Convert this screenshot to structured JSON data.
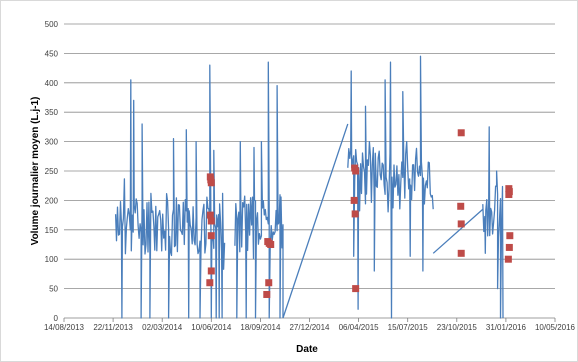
{
  "chart_data": {
    "type": "line",
    "title": "",
    "xlabel": "Date",
    "ylabel": "Volume journalier moyen (L.j-1)",
    "ylim": [
      0,
      500
    ],
    "yticks": [
      0,
      50,
      100,
      150,
      200,
      250,
      300,
      350,
      400,
      450,
      500
    ],
    "xlim": [
      "2013-08-14",
      "2016-05-10"
    ],
    "xtick_labels": [
      "14/08/2013",
      "22/11/2013",
      "02/03/2014",
      "10/06/2014",
      "18/09/2014",
      "27/12/2014",
      "06/04/2015",
      "15/07/2015",
      "23/10/2015",
      "31/01/2016",
      "10/05/2016"
    ],
    "grid": "horizontal",
    "legend": "none",
    "colors": {
      "line": "#4a7ebb",
      "markers": "#be4b48",
      "grid": "#8c8c8c"
    },
    "series": [
      {
        "type": "line",
        "segments": [
          {
            "start": "2013-11-27",
            "end": "2014-07-08",
            "seed": 11,
            "base": 160,
            "spread": 55,
            "spikes": [
              {
                "date": "2013-12-28",
                "value": 405
              },
              {
                "date": "2014-01-03",
                "value": 370
              },
              {
                "date": "2014-01-20",
                "value": 330
              },
              {
                "date": "2014-03-25",
                "value": 305
              },
              {
                "date": "2014-04-20",
                "value": 320
              },
              {
                "date": "2014-05-10",
                "value": 300
              },
              {
                "date": "2014-06-07",
                "value": 430
              },
              {
                "date": "2014-06-15",
                "value": 285
              }
            ],
            "drops": [
              {
                "date": "2013-12-10",
                "value": 0
              },
              {
                "date": "2014-01-18",
                "value": 0
              },
              {
                "date": "2014-02-05",
                "value": 0
              },
              {
                "date": "2014-03-15",
                "value": 0
              },
              {
                "date": "2014-04-25",
                "value": 0
              },
              {
                "date": "2014-05-18",
                "value": 0
              },
              {
                "date": "2014-06-10",
                "value": 0
              },
              {
                "date": "2014-06-20",
                "value": 0
              },
              {
                "date": "2014-06-26",
                "value": 0
              },
              {
                "date": "2014-07-02",
                "value": 0
              }
            ]
          },
          {
            "start": "2014-07-28",
            "end": "2014-11-03",
            "seed": 23,
            "base": 160,
            "spread": 50,
            "spikes": [
              {
                "date": "2014-08-08",
                "value": 300
              },
              {
                "date": "2014-09-05",
                "value": 290
              },
              {
                "date": "2014-09-20",
                "value": 300
              },
              {
                "date": "2014-10-04",
                "value": 435
              },
              {
                "date": "2014-10-22",
                "value": 395
              }
            ],
            "drops": [
              {
                "date": "2014-08-01",
                "value": 0
              },
              {
                "date": "2014-08-20",
                "value": 0
              },
              {
                "date": "2014-09-08",
                "value": 0
              },
              {
                "date": "2014-10-06",
                "value": 0
              },
              {
                "date": "2014-10-28",
                "value": 0
              },
              {
                "date": "2014-11-03",
                "value": 0
              }
            ]
          },
          {
            "start": "2015-03-15",
            "end": "2015-09-05",
            "seed": 37,
            "base": 235,
            "spread": 55,
            "spikes": [
              {
                "date": "2015-03-22",
                "value": 420
              },
              {
                "date": "2015-04-20",
                "value": 360
              },
              {
                "date": "2015-05-30",
                "value": 405
              },
              {
                "date": "2015-06-10",
                "value": 435
              },
              {
                "date": "2015-07-05",
                "value": 385
              },
              {
                "date": "2015-08-10",
                "value": 445
              }
            ],
            "drops": [
              {
                "date": "2015-03-27",
                "value": 105
              },
              {
                "date": "2015-04-05",
                "value": 15
              },
              {
                "date": "2015-05-08",
                "value": 80
              },
              {
                "date": "2015-06-12",
                "value": 0
              },
              {
                "date": "2015-07-20",
                "value": 105
              },
              {
                "date": "2015-08-15",
                "value": 80
              }
            ]
          },
          {
            "start": "2015-12-15",
            "end": "2016-01-25",
            "seed": 53,
            "base": 180,
            "spread": 45,
            "spikes": [
              {
                "date": "2015-12-28",
                "value": 325
              },
              {
                "date": "2016-01-12",
                "value": 250
              }
            ],
            "drops": [
              {
                "date": "2015-12-20",
                "value": 110
              },
              {
                "date": "2016-01-14",
                "value": 50
              },
              {
                "date": "2016-01-20",
                "value": 0
              },
              {
                "date": "2016-01-25",
                "value": 0
              }
            ]
          }
        ],
        "connectors": [
          [
            {
              "date": "2014-11-03",
              "value": 0
            },
            {
              "date": "2015-03-15",
              "value": 330
            }
          ],
          [
            {
              "date": "2015-09-05",
              "value": 110
            },
            {
              "date": "2015-12-15",
              "value": 185
            }
          ]
        ]
      },
      {
        "type": "scatter",
        "points": [
          {
            "x": "2014-06-08",
            "y": 240
          },
          {
            "x": "2014-06-09",
            "y": 235
          },
          {
            "x": "2014-06-10",
            "y": 230
          },
          {
            "x": "2014-06-08",
            "y": 175
          },
          {
            "x": "2014-06-10",
            "y": 165
          },
          {
            "x": "2014-06-10",
            "y": 140
          },
          {
            "x": "2014-06-10",
            "y": 80
          },
          {
            "x": "2014-06-07",
            "y": 60
          },
          {
            "x": "2014-10-03",
            "y": 130
          },
          {
            "x": "2014-10-06",
            "y": 127
          },
          {
            "x": "2014-10-09",
            "y": 125
          },
          {
            "x": "2014-10-05",
            "y": 60
          },
          {
            "x": "2014-10-01",
            "y": 40
          },
          {
            "x": "2015-03-29",
            "y": 255
          },
          {
            "x": "2015-03-31",
            "y": 250
          },
          {
            "x": "2015-03-28",
            "y": 200
          },
          {
            "x": "2015-03-30",
            "y": 177
          },
          {
            "x": "2015-03-31",
            "y": 50
          },
          {
            "x": "2015-11-01",
            "y": 315
          },
          {
            "x": "2015-10-31",
            "y": 190
          },
          {
            "x": "2015-11-01",
            "y": 160
          },
          {
            "x": "2015-11-01",
            "y": 110
          },
          {
            "x": "2016-02-06",
            "y": 220
          },
          {
            "x": "2016-02-07",
            "y": 215
          },
          {
            "x": "2016-02-06",
            "y": 210
          },
          {
            "x": "2016-02-08",
            "y": 140
          },
          {
            "x": "2016-02-07",
            "y": 120
          },
          {
            "x": "2016-02-05",
            "y": 100
          }
        ]
      }
    ]
  }
}
